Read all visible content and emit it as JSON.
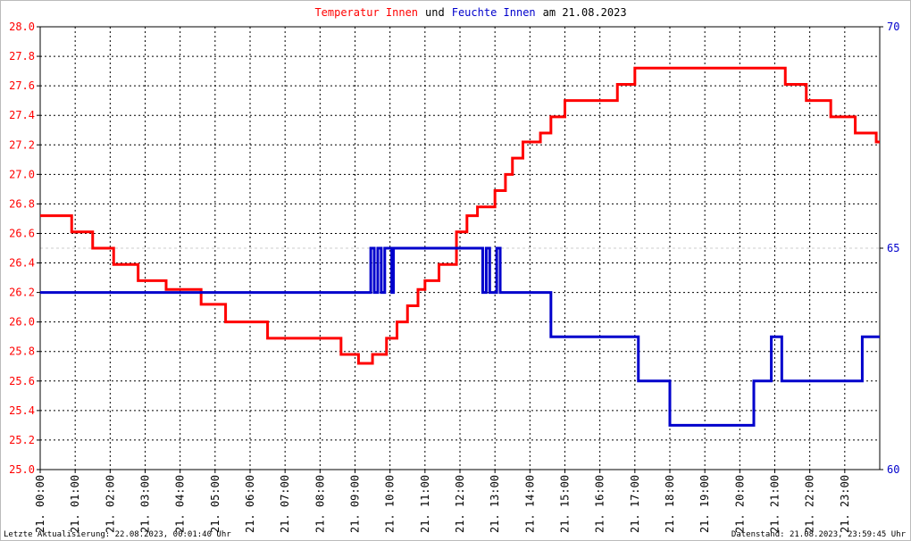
{
  "chart_data": {
    "type": "line",
    "title_parts": [
      {
        "text": "Temperatur Innen",
        "color": "#ff0000"
      },
      {
        "text": "und",
        "color": "#000000"
      },
      {
        "text": "Feuchte Innen",
        "color": "#0000cc"
      },
      {
        "text": "am 21.08.2023",
        "color": "#000000"
      }
    ],
    "footer_left": "Letzte Aktualisierung: 22.08.2023, 00:01:40 Uhr",
    "footer_right": "Datenstand: 21.08.2023, 23:59:45 Uhr",
    "xlim": [
      0,
      24
    ],
    "xticks": [
      {
        "value": 0,
        "label": "21. 00:00"
      },
      {
        "value": 1,
        "label": "21. 01:00"
      },
      {
        "value": 2,
        "label": "21. 02:00"
      },
      {
        "value": 3,
        "label": "21. 03:00"
      },
      {
        "value": 4,
        "label": "21. 04:00"
      },
      {
        "value": 5,
        "label": "21. 05:00"
      },
      {
        "value": 6,
        "label": "21. 06:00"
      },
      {
        "value": 7,
        "label": "21. 07:00"
      },
      {
        "value": 8,
        "label": "21. 08:00"
      },
      {
        "value": 9,
        "label": "21. 09:00"
      },
      {
        "value": 10,
        "label": "21. 10:00"
      },
      {
        "value": 11,
        "label": "21. 11:00"
      },
      {
        "value": 12,
        "label": "21. 12:00"
      },
      {
        "value": 13,
        "label": "21. 13:00"
      },
      {
        "value": 14,
        "label": "21. 14:00"
      },
      {
        "value": 15,
        "label": "21. 15:00"
      },
      {
        "value": 16,
        "label": "21. 16:00"
      },
      {
        "value": 17,
        "label": "21. 17:00"
      },
      {
        "value": 18,
        "label": "21. 18:00"
      },
      {
        "value": 19,
        "label": "21. 19:00"
      },
      {
        "value": 20,
        "label": "21. 20:00"
      },
      {
        "value": 21,
        "label": "21. 21:00"
      },
      {
        "value": 22,
        "label": "21. 22:00"
      },
      {
        "value": 23,
        "label": "21. 23:00"
      }
    ],
    "ylim": [
      25,
      28
    ],
    "yticks": [
      {
        "value": 25,
        "label": "25.0"
      },
      25.2,
      25.4,
      25.6,
      25.8,
      {
        "value": 26,
        "label": "26.0"
      },
      26.2,
      26.4,
      26.6,
      26.8,
      {
        "value": 27,
        "label": "27.0"
      },
      27.2,
      27.4,
      27.6,
      27.8,
      {
        "value": 28,
        "label": "28.0"
      }
    ],
    "y_tick_color": "#ff0000",
    "y2lim": [
      60,
      70
    ],
    "y2ticks": [
      60,
      65,
      70
    ],
    "y2_tick_color": "#0000cc",
    "grid": true,
    "series": [
      {
        "name": "Temperatur Innen",
        "color": "#ff0000",
        "x": [
          0,
          0.9,
          0.9,
          1.5,
          1.5,
          2.1,
          2.1,
          2.8,
          2.8,
          3.6,
          3.6,
          4.6,
          4.6,
          5.3,
          5.3,
          6.5,
          6.5,
          8.6,
          8.6,
          9.1,
          9.1,
          9.5,
          9.5,
          9.9,
          9.9,
          10.2,
          10.2,
          10.5,
          10.5,
          10.8,
          10.8,
          11.0,
          11.0,
          11.4,
          11.4,
          11.9,
          11.9,
          12.2,
          12.2,
          12.5,
          12.5,
          13.0,
          13.0,
          13.3,
          13.3,
          13.5,
          13.5,
          13.8,
          13.8,
          14.3,
          14.3,
          14.6,
          14.6,
          15.0,
          15.0,
          16.5,
          16.5,
          17.0,
          17.0,
          21.3,
          21.3,
          21.9,
          21.9,
          22.6,
          22.6,
          23.3,
          23.3,
          23.9,
          23.9,
          24
        ],
        "values": [
          26.72,
          26.72,
          26.61,
          26.61,
          26.5,
          26.5,
          26.39,
          26.39,
          26.28,
          26.28,
          26.22,
          26.22,
          26.12,
          26.12,
          26.0,
          26.0,
          25.89,
          25.89,
          25.78,
          25.78,
          25.72,
          25.72,
          25.78,
          25.78,
          25.89,
          25.89,
          26.0,
          26.0,
          26.11,
          26.11,
          26.22,
          26.22,
          26.28,
          26.28,
          26.39,
          26.39,
          26.61,
          26.61,
          26.72,
          26.72,
          26.78,
          26.78,
          26.89,
          26.89,
          27.0,
          27.0,
          27.11,
          27.11,
          27.22,
          27.22,
          27.28,
          27.28,
          27.39,
          27.39,
          27.5,
          27.5,
          27.61,
          27.61,
          27.72,
          27.72,
          27.61,
          27.61,
          27.5,
          27.5,
          27.39,
          27.39,
          27.28,
          27.28,
          27.22,
          27.22
        ]
      },
      {
        "name": "Feuchte Innen",
        "color": "#0000cc",
        "axis": "y2",
        "x": [
          0,
          9.45,
          9.45,
          9.55,
          9.55,
          9.65,
          9.65,
          9.75,
          9.75,
          9.85,
          9.85,
          10.05,
          10.05,
          10.1,
          10.1,
          12.65,
          12.65,
          12.75,
          12.75,
          12.85,
          12.85,
          13.05,
          13.05,
          13.15,
          13.15,
          14.6,
          14.6,
          17.1,
          17.1,
          18.0,
          18.0,
          20.4,
          20.4,
          20.9,
          20.9,
          21.2,
          21.2,
          23.5,
          23.5,
          24
        ],
        "values": [
          64,
          64,
          65,
          65,
          64,
          64,
          65,
          65,
          64,
          64,
          65,
          65,
          64,
          64,
          65,
          65,
          64,
          64,
          65,
          65,
          64,
          64,
          65,
          65,
          64,
          64,
          63,
          63,
          62,
          62,
          61,
          61,
          62,
          62,
          63,
          63,
          62,
          62,
          63,
          63
        ]
      }
    ]
  }
}
